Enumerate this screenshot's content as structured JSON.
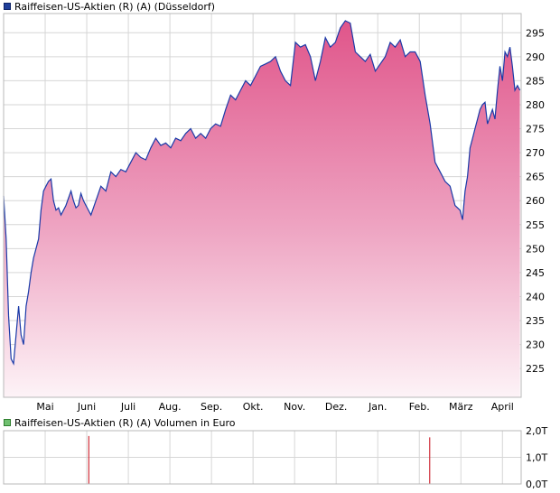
{
  "chart_data": [
    {
      "type": "area",
      "legend": "Raiffeisen-US-Aktien (R) (A) (Düsseldorf)",
      "legend_color": "#1f3f9a",
      "fill_color_top": "#e0558a",
      "line_color": "#1a3aa8",
      "grid": true,
      "y_axis_side": "right",
      "ylim": [
        219,
        299
      ],
      "yticks": [
        225,
        230,
        235,
        240,
        245,
        250,
        255,
        260,
        265,
        270,
        275,
        280,
        285,
        290,
        295
      ],
      "xlim": [
        0,
        12.45
      ],
      "x_ticks": [
        {
          "label": "Mai",
          "x": 1
        },
        {
          "label": "Juni",
          "x": 2
        },
        {
          "label": "Juli",
          "x": 3
        },
        {
          "label": "Aug.",
          "x": 4
        },
        {
          "label": "Sep.",
          "x": 5
        },
        {
          "label": "Okt.",
          "x": 6
        },
        {
          "label": "Nov.",
          "x": 7
        },
        {
          "label": "Dez.",
          "x": 8
        },
        {
          "label": "Jan.",
          "x": 9
        },
        {
          "label": "Feb.",
          "x": 10
        },
        {
          "label": "März",
          "x": 11
        },
        {
          "label": "April",
          "x": 12
        }
      ],
      "series": {
        "x": [
          0.0,
          0.06,
          0.12,
          0.18,
          0.24,
          0.3,
          0.36,
          0.42,
          0.48,
          0.54,
          0.6,
          0.66,
          0.72,
          0.78,
          0.84,
          0.9,
          0.96,
          1.02,
          1.08,
          1.14,
          1.2,
          1.26,
          1.32,
          1.38,
          1.44,
          1.5,
          1.56,
          1.62,
          1.68,
          1.74,
          1.8,
          1.86,
          1.92,
          1.98,
          2.1,
          2.22,
          2.34,
          2.46,
          2.58,
          2.7,
          2.82,
          2.94,
          3.06,
          3.18,
          3.3,
          3.42,
          3.54,
          3.66,
          3.78,
          3.9,
          4.02,
          4.14,
          4.26,
          4.38,
          4.5,
          4.62,
          4.74,
          4.86,
          4.98,
          5.1,
          5.22,
          5.34,
          5.46,
          5.58,
          5.7,
          5.82,
          5.94,
          6.06,
          6.18,
          6.3,
          6.42,
          6.54,
          6.66,
          6.78,
          6.9,
          7.02,
          7.14,
          7.26,
          7.38,
          7.5,
          7.62,
          7.74,
          7.86,
          7.98,
          8.1,
          8.22,
          8.34,
          8.46,
          8.58,
          8.7,
          8.82,
          8.94,
          9.06,
          9.18,
          9.3,
          9.42,
          9.54,
          9.66,
          9.78,
          9.9,
          10.02,
          10.14,
          10.26,
          10.38,
          10.5,
          10.62,
          10.74,
          10.86,
          10.98,
          11.04,
          11.1,
          11.16,
          11.22,
          11.28,
          11.34,
          11.4,
          11.46,
          11.52,
          11.58,
          11.64,
          11.7,
          11.76,
          11.82,
          11.88,
          11.94,
          12.0,
          12.06,
          12.12,
          12.18,
          12.24,
          12.3,
          12.36,
          12.42
        ],
        "values": [
          261.0,
          252.0,
          236.0,
          227.0,
          226.0,
          232.0,
          238.0,
          232.0,
          230.0,
          238.0,
          241.0,
          245.0,
          248.0,
          250.0,
          252.0,
          258.0,
          262.0,
          263.0,
          264.0,
          264.5,
          260.0,
          258.0,
          258.5,
          257.0,
          258.0,
          259.0,
          260.5,
          262.0,
          260.0,
          258.5,
          259.0,
          261.5,
          260.0,
          259.0,
          257.0,
          260.0,
          263.0,
          262.0,
          266.0,
          265.0,
          266.5,
          266.0,
          268.0,
          270.0,
          269.0,
          268.5,
          271.0,
          273.0,
          271.5,
          272.0,
          271.0,
          273.0,
          272.5,
          274.0,
          275.0,
          273.0,
          274.0,
          273.0,
          275.0,
          276.0,
          275.5,
          279.0,
          282.0,
          281.0,
          283.0,
          285.0,
          284.0,
          286.0,
          288.0,
          288.5,
          289.0,
          290.0,
          287.0,
          285.0,
          284.0,
          293.0,
          292.0,
          292.5,
          290.0,
          285.0,
          289.0,
          294.0,
          292.0,
          293.0,
          296.0,
          297.5,
          297.0,
          291.0,
          290.0,
          289.0,
          290.5,
          287.0,
          288.5,
          290.0,
          293.0,
          292.0,
          293.5,
          290.0,
          291.0,
          291.0,
          289.0,
          282.0,
          276.0,
          268.0,
          266.0,
          264.0,
          263.0,
          259.0,
          258.0,
          256.0,
          262.0,
          265.0,
          271.0,
          273.0,
          275.0,
          277.0,
          279.0,
          280.0,
          280.5,
          276.0,
          277.5,
          279.0,
          277.0,
          283.0,
          288.0,
          285.0,
          291.0,
          290.0,
          292.0,
          288.0,
          283.0,
          284.0,
          283.0
        ]
      }
    },
    {
      "type": "bar",
      "legend": "Raiffeisen-US-Aktien (R) (A) Volumen in Euro",
      "legend_color": "#70c070",
      "bar_color": "#d0303c",
      "grid": true,
      "y_axis_side": "right",
      "ylim": [
        0,
        2
      ],
      "yticks": [
        {
          "value": 0,
          "label": "0,0T"
        },
        {
          "value": 1,
          "label": "1,0T"
        },
        {
          "value": 2,
          "label": "2,0T"
        }
      ],
      "bars": [
        {
          "x": 2.05,
          "value": 1.8
        },
        {
          "x": 10.25,
          "value": 1.75
        }
      ]
    }
  ]
}
